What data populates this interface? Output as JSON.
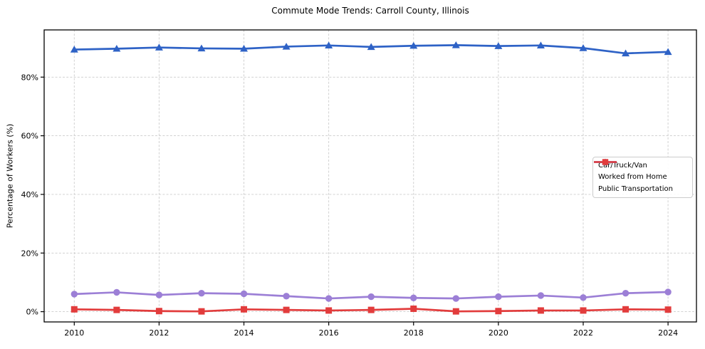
{
  "chart_data": {
    "type": "line",
    "title": "Commute Mode Trends: Carroll County, Illinois",
    "xlabel": "",
    "ylabel": "Percentage of Workers (%)",
    "x": [
      2010,
      2011,
      2012,
      2013,
      2014,
      2015,
      2016,
      2017,
      2018,
      2019,
      2020,
      2021,
      2022,
      2023,
      2024
    ],
    "series": [
      {
        "name": "Car/Truck/Van",
        "marker": "triangle",
        "color": "#2e62c6",
        "values": [
          89.4,
          89.7,
          90.1,
          89.8,
          89.7,
          90.4,
          90.8,
          90.3,
          90.7,
          90.9,
          90.6,
          90.8,
          89.9,
          88.1,
          88.6
        ]
      },
      {
        "name": "Worked from Home",
        "marker": "circle",
        "color": "#9c7fd6",
        "values": [
          6.0,
          6.6,
          5.7,
          6.3,
          6.1,
          5.3,
          4.5,
          5.1,
          4.7,
          4.5,
          5.1,
          5.5,
          4.8,
          6.3,
          6.7
        ]
      },
      {
        "name": "Public Transportation",
        "marker": "square",
        "color": "#e23c3c",
        "values": [
          0.8,
          0.6,
          0.2,
          0.1,
          0.8,
          0.6,
          0.4,
          0.6,
          1.0,
          0.1,
          0.2,
          0.4,
          0.4,
          0.8,
          0.7
        ]
      }
    ],
    "xticks": [
      2010,
      2012,
      2014,
      2016,
      2018,
      2020,
      2022,
      2024
    ],
    "xtick_labels": [
      "2010",
      "2012",
      "2014",
      "2016",
      "2018",
      "2020",
      "2022",
      "2024"
    ],
    "yticks": [
      0,
      20,
      40,
      60,
      80
    ],
    "ytick_labels": [
      "0%",
      "20%",
      "40%",
      "60%",
      "80%"
    ],
    "xlim": [
      2009.29,
      2024.67
    ],
    "ylim": [
      -3.5,
      96.1
    ],
    "grid": true,
    "legend_position": "center-right",
    "style": {
      "grid_color": "#cccccc",
      "spine_color": "#000000",
      "text_color": "#000000",
      "background": "#ffffff"
    }
  }
}
